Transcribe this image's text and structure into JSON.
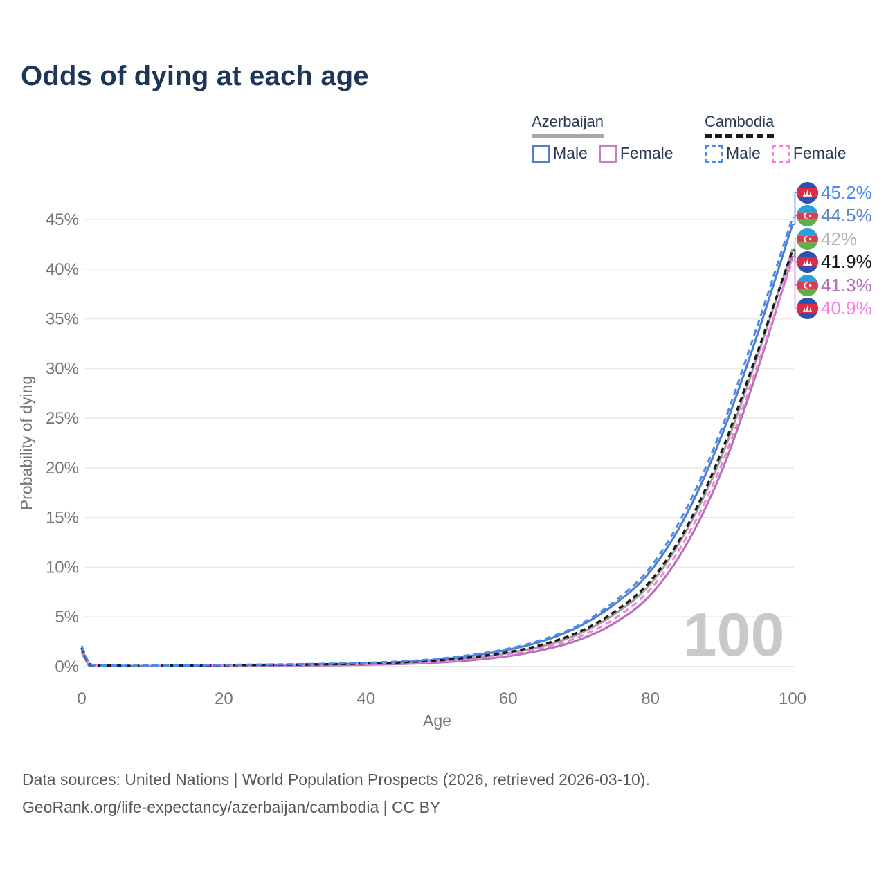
{
  "title": "Odds of dying at each age",
  "legend": {
    "groups": [
      {
        "country": "Azerbaijan",
        "line_style": "solid",
        "underline_color": "#a8a8a8",
        "items": [
          {
            "label": "Male",
            "color": "#4f7ecb",
            "dashed": false
          },
          {
            "label": "Female",
            "color": "#c27fc4",
            "dashed": false
          }
        ]
      },
      {
        "country": "Cambodia",
        "line_style": "dashed",
        "underline_color": "#1a1a1a",
        "items": [
          {
            "label": "Male",
            "color": "#4a8af4",
            "dashed": true
          },
          {
            "label": "Female",
            "color": "#fb7de4",
            "dashed": true
          }
        ]
      }
    ]
  },
  "chart_data": {
    "type": "line",
    "title": "Odds of dying at each age",
    "xlabel": "Age",
    "ylabel": "Probability of dying",
    "xlim": [
      0,
      100
    ],
    "ylim": [
      0,
      47
    ],
    "xticks": [
      0,
      20,
      40,
      60,
      80,
      100
    ],
    "yticks": [
      0,
      5,
      10,
      15,
      20,
      25,
      30,
      35,
      40,
      45
    ],
    "grid": "horizontal-only",
    "watermark": "100",
    "x": [
      0,
      1,
      5,
      10,
      15,
      20,
      25,
      30,
      35,
      40,
      45,
      50,
      55,
      60,
      65,
      70,
      75,
      80,
      85,
      90,
      95,
      100
    ],
    "series": [
      {
        "name": "Azerbaijan Female",
        "country": "Azerbaijan",
        "sex": "Female",
        "color": "#ae74b5",
        "dashed": false,
        "values": [
          1.4,
          0.11,
          0.04,
          0.04,
          0.05,
          0.07,
          0.08,
          0.1,
          0.13,
          0.18,
          0.26,
          0.4,
          0.65,
          1.05,
          1.7,
          2.7,
          4.4,
          7.2,
          12.2,
          19.6,
          29.7,
          41.3
        ]
      },
      {
        "name": "Azerbaijan",
        "country": "Azerbaijan",
        "sex": "Both",
        "color": "#a0a0a0",
        "dashed": false,
        "values": [
          1.6,
          0.13,
          0.05,
          0.05,
          0.07,
          0.1,
          0.12,
          0.15,
          0.19,
          0.26,
          0.36,
          0.55,
          0.85,
          1.35,
          2.1,
          3.3,
          5.3,
          8.3,
          13.6,
          21.1,
          31.1,
          42.0
        ]
      },
      {
        "name": "Azerbaijan Male",
        "country": "Azerbaijan",
        "sex": "Male",
        "color": "#4f7ecb",
        "dashed": false,
        "values": [
          1.8,
          0.15,
          0.06,
          0.06,
          0.09,
          0.13,
          0.16,
          0.19,
          0.24,
          0.32,
          0.45,
          0.7,
          1.1,
          1.7,
          2.6,
          4.05,
          6.3,
          9.6,
          15.2,
          23.2,
          33.3,
          44.5
        ]
      },
      {
        "name": "Cambodia Female",
        "country": "Cambodia",
        "sex": "Female",
        "color": "#fb7de4",
        "dashed": true,
        "values": [
          1.8,
          0.24,
          0.08,
          0.07,
          0.09,
          0.12,
          0.14,
          0.17,
          0.2,
          0.26,
          0.35,
          0.5,
          0.78,
          1.2,
          1.9,
          3.0,
          4.85,
          7.8,
          12.9,
          20.3,
          30.2,
          40.9
        ]
      },
      {
        "name": "Cambodia",
        "country": "Cambodia",
        "sex": "Both",
        "color": "#1a1a1a",
        "dashed": true,
        "values": [
          1.9,
          0.27,
          0.09,
          0.08,
          0.1,
          0.14,
          0.17,
          0.2,
          0.24,
          0.31,
          0.42,
          0.62,
          0.95,
          1.45,
          2.25,
          3.5,
          5.55,
          8.6,
          13.9,
          21.6,
          31.5,
          41.9
        ]
      },
      {
        "name": "Cambodia Male",
        "country": "Cambodia",
        "sex": "Male",
        "color": "#4a8af4",
        "dashed": true,
        "values": [
          2.1,
          0.3,
          0.1,
          0.09,
          0.12,
          0.17,
          0.2,
          0.24,
          0.29,
          0.38,
          0.52,
          0.78,
          1.2,
          1.8,
          2.75,
          4.2,
          6.6,
          10.0,
          15.8,
          23.9,
          34.2,
          45.2
        ]
      }
    ],
    "end_labels": [
      {
        "value": "45.2%",
        "series": "Cambodia Male",
        "flag": "kh",
        "color": "#4a8af4"
      },
      {
        "value": "44.5%",
        "series": "Azerbaijan Male",
        "flag": "az",
        "color": "#5b84cd"
      },
      {
        "value": "42%",
        "series": "Azerbaijan",
        "flag": "az",
        "color": "#b5b5b5"
      },
      {
        "value": "41.9%",
        "series": "Cambodia",
        "flag": "kh",
        "color": "#1a1a1a"
      },
      {
        "value": "41.3%",
        "series": "Azerbaijan Female",
        "flag": "az",
        "color": "#b16fc0"
      },
      {
        "value": "40.9%",
        "series": "Cambodia Female",
        "flag": "kh",
        "color": "#fb7de4"
      }
    ]
  },
  "footer": {
    "line1": "Data sources: United Nations | World Population Prospects (2026, retrieved 2026-03-10).",
    "line2": "GeoRank.org/life-expectancy/azerbaijan/cambodia | CC BY"
  }
}
